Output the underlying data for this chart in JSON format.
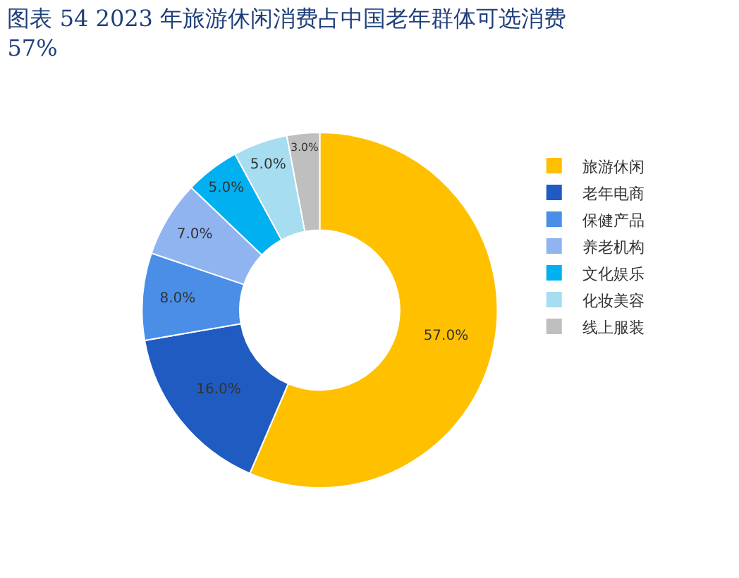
{
  "chart_data": {
    "type": "donut",
    "title": "图表 54 2023 年旅游休闲消费占中国老年群体可选消费 57%",
    "categories": [
      "旅游休闲",
      "老年电商",
      "保健产品",
      "养老机构",
      "文化娱乐",
      "化妆美容",
      "线上服装"
    ],
    "values": [
      57,
      16,
      8,
      7,
      5,
      5,
      3
    ],
    "colors": [
      "#ffc000",
      "#1f5bc1",
      "#4a8ee8",
      "#8fb4f0",
      "#00b0f0",
      "#a6ddf0",
      "#bfbfbf"
    ],
    "value_labels": [
      "57.0%",
      "16.0%",
      "8.0%",
      "7.0%",
      "5.0%",
      "5.0%",
      "3.0%"
    ],
    "legend": "right"
  }
}
